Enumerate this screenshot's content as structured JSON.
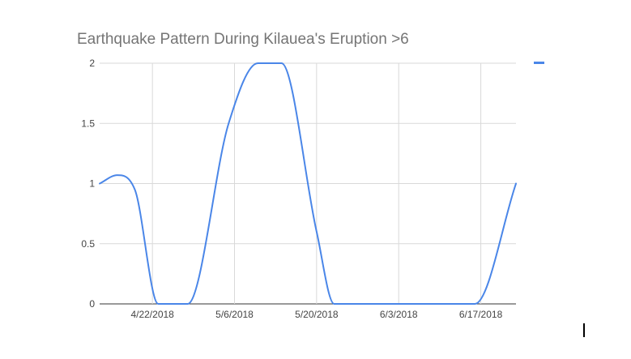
{
  "chart_data": {
    "type": "line",
    "title": "Earthquake Pattern During Kilauea's Eruption >6",
    "xlabel": "",
    "ylabel": "",
    "x_tick_labels": [
      "4/22/2018",
      "5/6/2018",
      "5/20/2018",
      "6/3/2018",
      "6/17/2018"
    ],
    "y_tick_labels": [
      "0",
      "0.5",
      "1",
      "1.5",
      "2"
    ],
    "y_ticks": [
      0,
      0.5,
      1,
      1.5,
      2
    ],
    "ylim": [
      0,
      2
    ],
    "xlim": [
      "4/13/2018",
      "6/23/2018"
    ],
    "grid": true,
    "legend": "right",
    "series": [
      {
        "color": "#4a86e8",
        "points": [
          {
            "x": "4/13/2018",
            "y": 1
          },
          {
            "x": "4/16/2018",
            "y": 1.07
          },
          {
            "x": "4/19/2018",
            "y": 0.95
          },
          {
            "x": "4/23/2018",
            "y": 0
          },
          {
            "x": "4/28/2018",
            "y": 0
          },
          {
            "x": "5/5/2018",
            "y": 1.5
          },
          {
            "x": "5/10/2018",
            "y": 2
          },
          {
            "x": "5/14/2018",
            "y": 2
          },
          {
            "x": "5/20/2018",
            "y": 0.6
          },
          {
            "x": "5/23/2018",
            "y": 0
          },
          {
            "x": "6/16/2018",
            "y": 0
          },
          {
            "x": "6/23/2018",
            "y": 1
          }
        ]
      }
    ]
  }
}
